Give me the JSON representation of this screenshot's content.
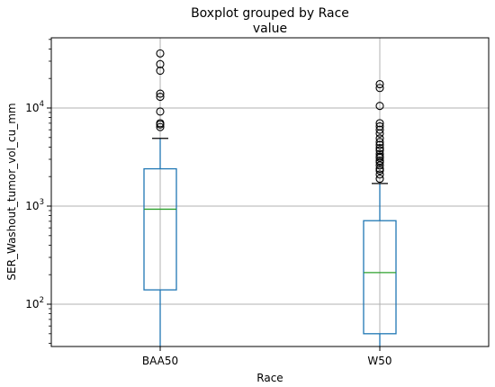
{
  "chart_data": {
    "type": "boxplot",
    "title": "Boxplot grouped by Race",
    "subtitle": "value",
    "xlabel": "Race",
    "ylabel": "SER_Washout_tumor_vol_cu_mm",
    "yscale": "log",
    "ylim": [
      37,
      50000
    ],
    "grid": true,
    "colors": {
      "box": "#1f77b4",
      "median": "#2ca02c",
      "whisker": "#1f77b4",
      "cap": "#000000",
      "flier": "#000000",
      "grid": "#b0b0b0"
    },
    "yticks": [
      {
        "value": 100,
        "base": "10",
        "exp": "2"
      },
      {
        "value": 1000,
        "base": "10",
        "exp": "3"
      },
      {
        "value": 10000,
        "base": "10",
        "exp": "4"
      }
    ],
    "categories": [
      "BAA50",
      "W50"
    ],
    "boxes": [
      {
        "label": "BAA50",
        "whislo": 37,
        "q1": 140,
        "median": 930,
        "q3": 2400,
        "whishi": 4900,
        "fliers": [
          6400,
          6800,
          7000,
          9200,
          13000,
          14000,
          24000,
          28000,
          36000
        ]
      },
      {
        "label": "W50",
        "whislo": 37,
        "q1": 50,
        "median": 210,
        "q3": 710,
        "whishi": 1700,
        "fliers": [
          1900,
          2100,
          2300,
          2400,
          2600,
          2800,
          2900,
          3100,
          3200,
          3400,
          3700,
          3900,
          4200,
          4500,
          4900,
          5500,
          6000,
          6500,
          7000,
          10500,
          16000,
          17500
        ]
      }
    ]
  }
}
